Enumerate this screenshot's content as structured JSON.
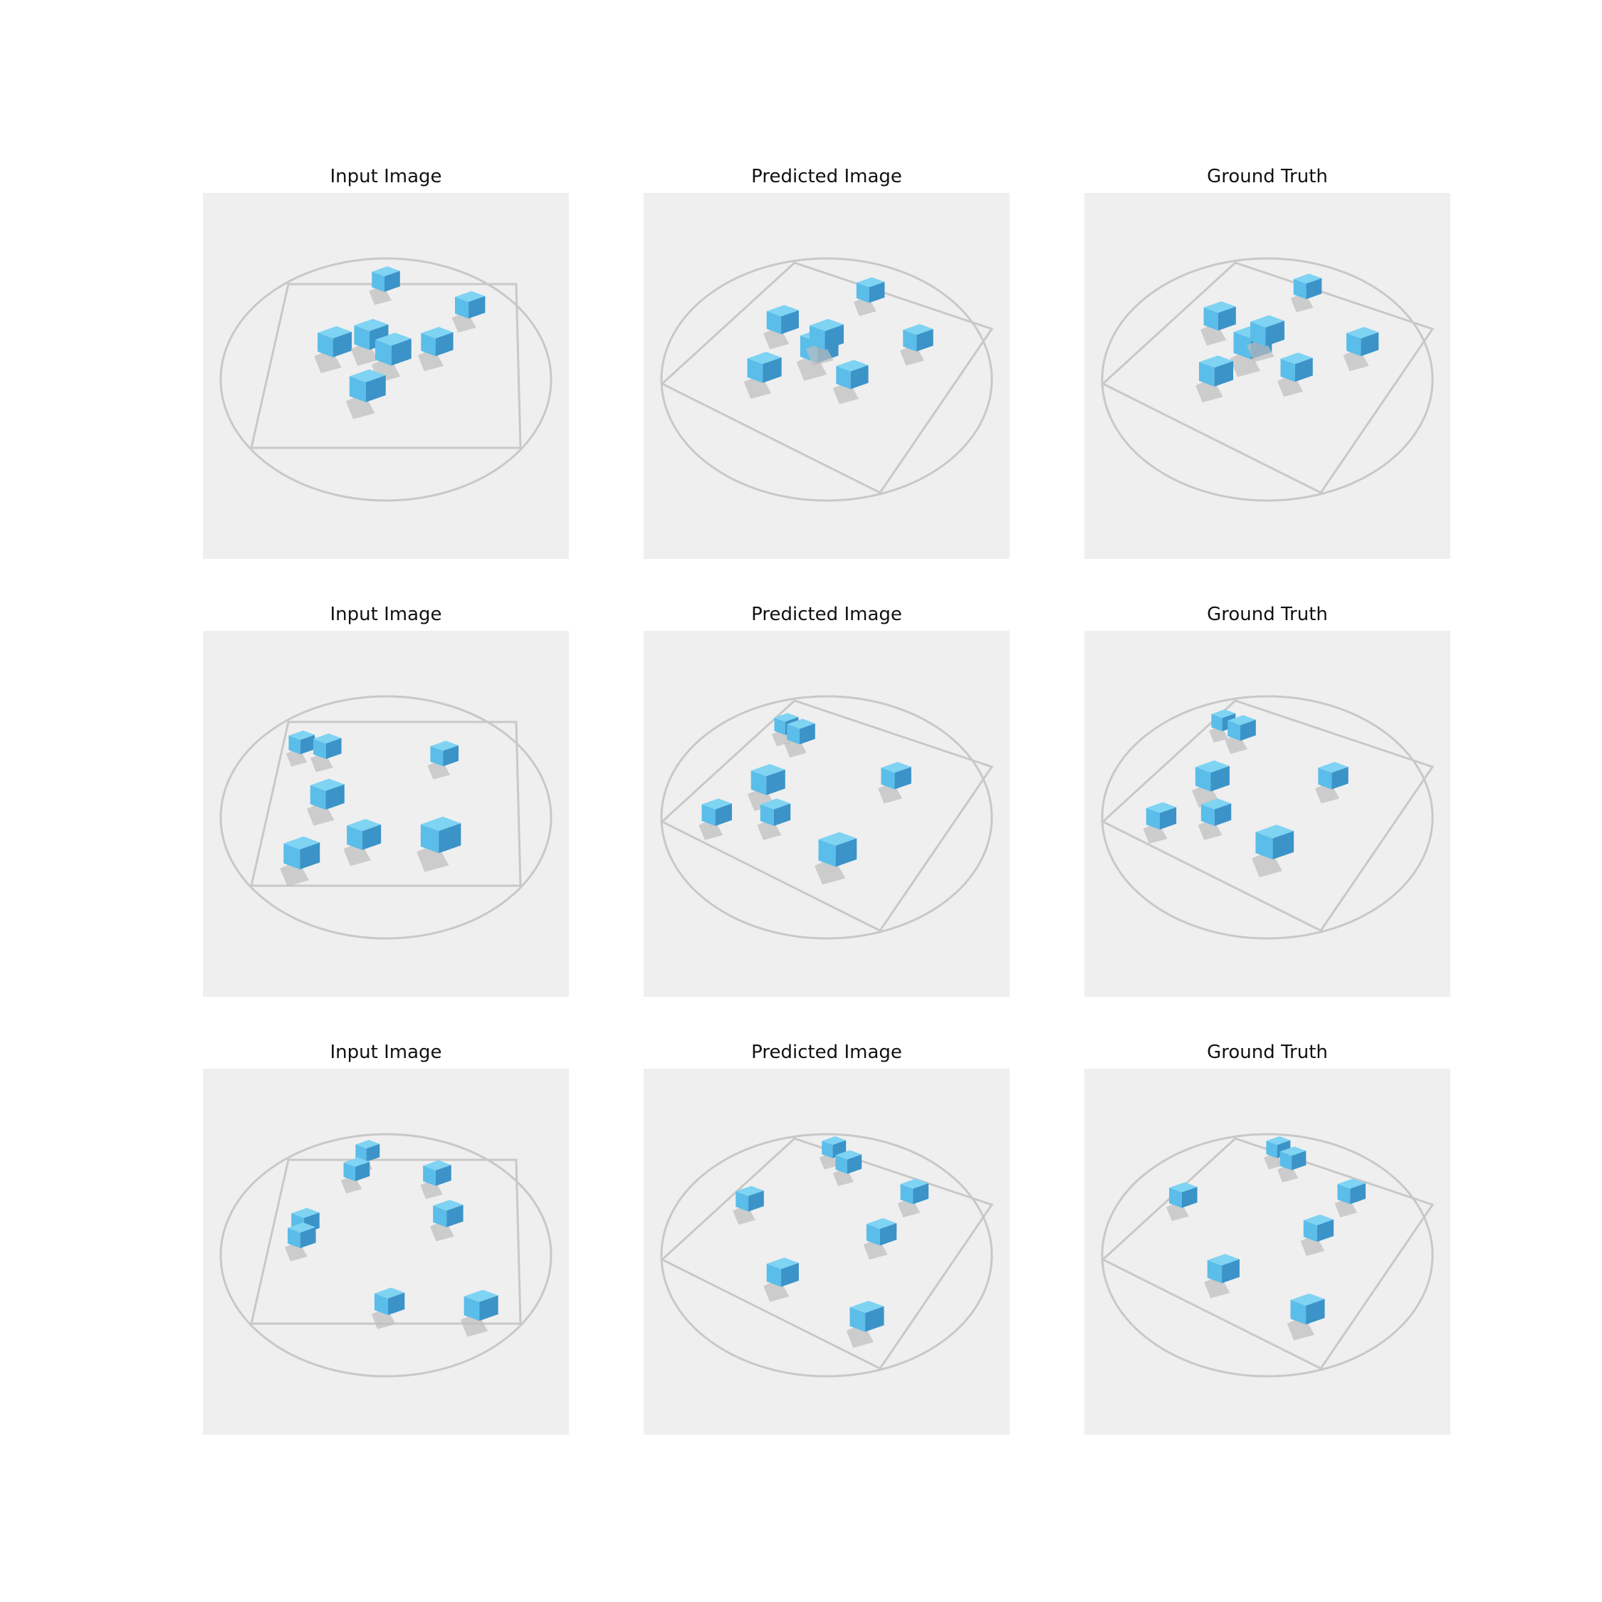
{
  "figure": {
    "rows": [
      [
        {
          "title": "Input Image",
          "view": "input",
          "cubes": [
            [
              0.5,
              0.23,
              0.14
            ],
            [
              0.36,
              0.4,
              0.17
            ],
            [
              0.46,
              0.38,
              0.17
            ],
            [
              0.52,
              0.42,
              0.18
            ],
            [
              0.64,
              0.4,
              0.16
            ],
            [
              0.73,
              0.3,
              0.15
            ],
            [
              0.45,
              0.52,
              0.18
            ]
          ]
        },
        {
          "title": "Predicted Image",
          "view": "rotated",
          "cubes": [
            [
              0.62,
              0.26,
              0.14
            ],
            [
              0.38,
              0.34,
              0.16
            ],
            [
              0.48,
              0.41,
              0.19
            ],
            [
              0.33,
              0.47,
              0.17
            ],
            [
              0.57,
              0.49,
              0.16
            ],
            [
              0.75,
              0.39,
              0.15
            ],
            [
              0.5,
              0.38,
              0.17
            ]
          ]
        },
        {
          "title": "Ground Truth",
          "view": "rotated",
          "cubes": [
            [
              0.61,
              0.25,
              0.14
            ],
            [
              0.37,
              0.33,
              0.16
            ],
            [
              0.46,
              0.4,
              0.19
            ],
            [
              0.36,
              0.48,
              0.17
            ],
            [
              0.58,
              0.47,
              0.16
            ],
            [
              0.76,
              0.4,
              0.16
            ],
            [
              0.5,
              0.37,
              0.17
            ]
          ]
        }
      ],
      [
        {
          "title": "Input Image",
          "view": "input",
          "cubes": [
            [
              0.27,
              0.3,
              0.13
            ],
            [
              0.34,
              0.31,
              0.14
            ],
            [
              0.66,
              0.33,
              0.14
            ],
            [
              0.34,
              0.44,
              0.17
            ],
            [
              0.44,
              0.55,
              0.17
            ],
            [
              0.65,
              0.55,
              0.2
            ],
            [
              0.27,
              0.6,
              0.18
            ]
          ]
        },
        {
          "title": "Predicted Image",
          "view": "rotated",
          "cubes": [
            [
              0.39,
              0.25,
              0.12
            ],
            [
              0.43,
              0.27,
              0.14
            ],
            [
              0.34,
              0.4,
              0.17
            ],
            [
              0.36,
              0.49,
              0.15
            ],
            [
              0.2,
              0.49,
              0.15
            ],
            [
              0.69,
              0.39,
              0.15
            ],
            [
              0.53,
              0.59,
              0.19
            ]
          ]
        },
        {
          "title": "Ground Truth",
          "view": "rotated",
          "cubes": [
            [
              0.38,
              0.24,
              0.12
            ],
            [
              0.43,
              0.26,
              0.14
            ],
            [
              0.35,
              0.39,
              0.17
            ],
            [
              0.36,
              0.49,
              0.15
            ],
            [
              0.21,
              0.5,
              0.15
            ],
            [
              0.68,
              0.39,
              0.15
            ],
            [
              0.52,
              0.57,
              0.19
            ]
          ]
        }
      ],
      [
        {
          "title": "Input Image",
          "view": "input",
          "cubes": [
            [
              0.45,
              0.22,
              0.12
            ],
            [
              0.42,
              0.27,
              0.13
            ],
            [
              0.64,
              0.28,
              0.14
            ],
            [
              0.67,
              0.39,
              0.15
            ],
            [
              0.28,
              0.41,
              0.14
            ],
            [
              0.27,
              0.45,
              0.14
            ],
            [
              0.51,
              0.63,
              0.15
            ],
            [
              0.76,
              0.64,
              0.17
            ]
          ]
        },
        {
          "title": "Predicted Image",
          "view": "rotated",
          "cubes": [
            [
              0.52,
              0.21,
              0.12
            ],
            [
              0.56,
              0.25,
              0.13
            ],
            [
              0.74,
              0.33,
              0.14
            ],
            [
              0.29,
              0.35,
              0.14
            ],
            [
              0.65,
              0.44,
              0.15
            ],
            [
              0.38,
              0.55,
              0.16
            ],
            [
              0.61,
              0.67,
              0.17
            ]
          ]
        },
        {
          "title": "Ground Truth",
          "view": "rotated",
          "cubes": [
            [
              0.53,
              0.21,
              0.12
            ],
            [
              0.57,
              0.24,
              0.13
            ],
            [
              0.73,
              0.33,
              0.14
            ],
            [
              0.27,
              0.34,
              0.14
            ],
            [
              0.64,
              0.43,
              0.15
            ],
            [
              0.38,
              0.54,
              0.16
            ],
            [
              0.61,
              0.65,
              0.17
            ]
          ]
        }
      ]
    ]
  },
  "colors": {
    "panel_bg": "#efefef",
    "line": "#c8c8c8",
    "cube_top": "#7fd3f3",
    "cube_left": "#5bbde9",
    "cube_right": "#3b93c8",
    "shadow": "#bdbdbd"
  }
}
